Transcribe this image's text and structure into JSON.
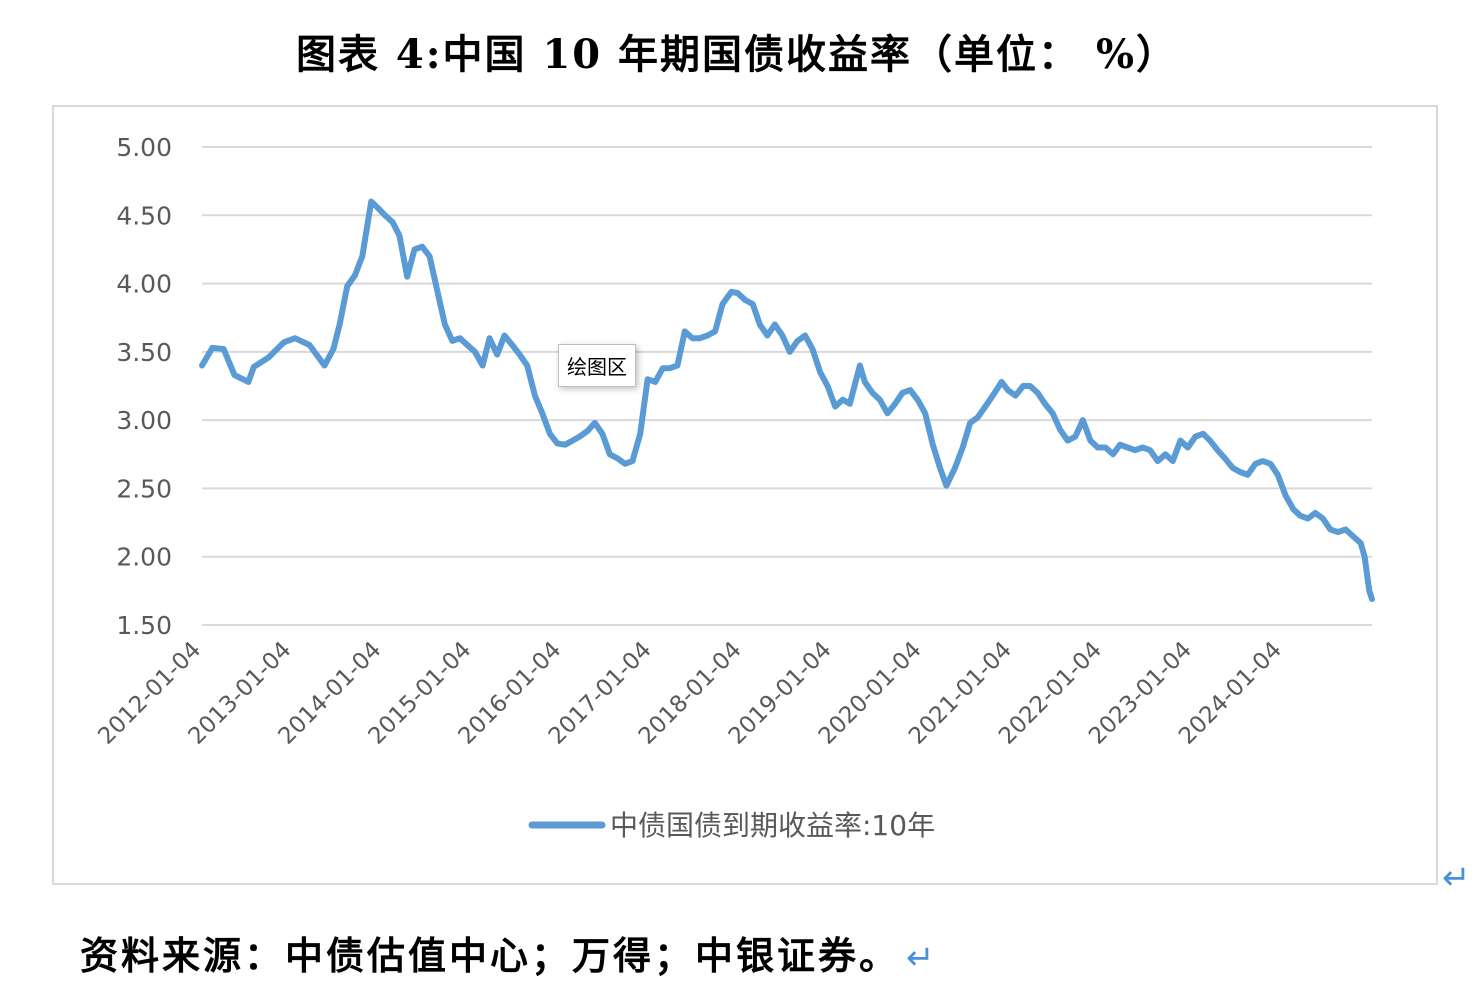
{
  "title": "图表 4:中国 10 年期国债收益率（单位：  %）",
  "source": "资料来源：中债估值中心；万得；中银证券。",
  "tooltip": "绘图区",
  "para_mark": "↵",
  "chart_data": {
    "type": "line",
    "title": "图表 4:中国 10 年期国债收益率（单位：  %）",
    "xlabel": "",
    "ylabel": "",
    "ylim": [
      1.5,
      5.0
    ],
    "yticks": [
      "5.00",
      "4.50",
      "4.00",
      "3.50",
      "3.00",
      "2.50",
      "2.00",
      "1.50"
    ],
    "xticks": [
      "2012-01-04",
      "2013-01-04",
      "2014-01-04",
      "2015-01-04",
      "2016-01-04",
      "2017-01-04",
      "2018-01-04",
      "2019-01-04",
      "2020-01-04",
      "2021-01-04",
      "2022-01-04",
      "2023-01-04",
      "2024-01-04"
    ],
    "xlim": [
      "2012-01-04",
      "2024-12-31"
    ],
    "grid": true,
    "legend": "bottom",
    "color": "#5b9bd5",
    "series": [
      {
        "name": "中债国债到期收益率:10年",
        "x": [
          "2012-01-04",
          "2012-02-15",
          "2012-04-01",
          "2012-05-15",
          "2012-07-10",
          "2012-08-01",
          "2012-10-01",
          "2012-12-01",
          "2013-01-15",
          "2013-03-15",
          "2013-05-15",
          "2013-06-20",
          "2013-07-15",
          "2013-08-15",
          "2013-09-15",
          "2013-10-15",
          "2013-11-20",
          "2013-12-20",
          "2014-01-15",
          "2014-02-15",
          "2014-03-15",
          "2014-04-15",
          "2014-05-15",
          "2014-06-15",
          "2014-07-15",
          "2014-08-15",
          "2014-09-15",
          "2014-10-15",
          "2014-11-15",
          "2014-12-15",
          "2015-01-15",
          "2015-02-15",
          "2015-03-15",
          "2015-04-15",
          "2015-05-15",
          "2015-06-15",
          "2015-07-15",
          "2015-08-15",
          "2015-09-15",
          "2015-10-15",
          "2015-11-15",
          "2015-12-15",
          "2016-01-15",
          "2016-02-15",
          "2016-03-15",
          "2016-04-15",
          "2016-05-15",
          "2016-06-15",
          "2016-07-15",
          "2016-08-15",
          "2016-09-15",
          "2016-10-15",
          "2016-11-15",
          "2016-12-15",
          "2017-01-15",
          "2017-02-15",
          "2017-03-15",
          "2017-04-15",
          "2017-05-15",
          "2017-06-15",
          "2017-07-15",
          "2017-08-15",
          "2017-09-15",
          "2017-10-15",
          "2017-11-20",
          "2017-12-15",
          "2018-01-15",
          "2018-02-15",
          "2018-03-15",
          "2018-04-15",
          "2018-05-15",
          "2018-06-15",
          "2018-07-15",
          "2018-08-15",
          "2018-09-15",
          "2018-10-15",
          "2018-11-15",
          "2018-12-15",
          "2019-01-15",
          "2019-02-15",
          "2019-03-15",
          "2019-04-25",
          "2019-05-15",
          "2019-06-15",
          "2019-07-15",
          "2019-08-15",
          "2019-09-15",
          "2019-10-15",
          "2019-11-15",
          "2019-12-15",
          "2020-01-15",
          "2020-02-15",
          "2020-03-15",
          "2020-04-10",
          "2020-05-15",
          "2020-06-15",
          "2020-07-15",
          "2020-08-15",
          "2020-09-15",
          "2020-10-15",
          "2020-11-20",
          "2020-12-15",
          "2021-01-15",
          "2021-02-15",
          "2021-03-15",
          "2021-04-15",
          "2021-05-15",
          "2021-06-15",
          "2021-07-15",
          "2021-08-15",
          "2021-09-15",
          "2021-10-15",
          "2021-11-15",
          "2021-12-15",
          "2022-01-15",
          "2022-02-15",
          "2022-03-15",
          "2022-04-15",
          "2022-05-15",
          "2022-06-15",
          "2022-07-15",
          "2022-08-15",
          "2022-09-15",
          "2022-10-15",
          "2022-11-15",
          "2022-12-15",
          "2023-01-15",
          "2023-02-15",
          "2023-03-15",
          "2023-04-15",
          "2023-05-15",
          "2023-06-15",
          "2023-07-15",
          "2023-08-15",
          "2023-09-15",
          "2023-10-15",
          "2023-11-15",
          "2023-12-15",
          "2024-01-15",
          "2024-02-15",
          "2024-03-15",
          "2024-04-15",
          "2024-05-15",
          "2024-06-15",
          "2024-07-15",
          "2024-08-15",
          "2024-09-15",
          "2024-10-15",
          "2024-11-15",
          "2024-12-01",
          "2024-12-20",
          "2024-12-31"
        ],
        "values": [
          3.4,
          3.53,
          3.52,
          3.33,
          3.28,
          3.39,
          3.46,
          3.57,
          3.6,
          3.55,
          3.4,
          3.52,
          3.7,
          3.98,
          4.06,
          4.2,
          4.6,
          4.55,
          4.5,
          4.45,
          4.35,
          4.05,
          4.25,
          4.27,
          4.2,
          3.95,
          3.7,
          3.58,
          3.6,
          3.55,
          3.5,
          3.4,
          3.6,
          3.48,
          3.62,
          3.55,
          3.48,
          3.4,
          3.18,
          3.05,
          2.9,
          2.83,
          2.82,
          2.85,
          2.88,
          2.92,
          2.98,
          2.9,
          2.75,
          2.72,
          2.68,
          2.7,
          2.9,
          3.3,
          3.28,
          3.38,
          3.38,
          3.4,
          3.65,
          3.6,
          3.6,
          3.62,
          3.65,
          3.85,
          3.94,
          3.93,
          3.88,
          3.85,
          3.7,
          3.62,
          3.7,
          3.62,
          3.5,
          3.58,
          3.62,
          3.52,
          3.35,
          3.25,
          3.1,
          3.15,
          3.12,
          3.4,
          3.28,
          3.2,
          3.15,
          3.05,
          3.12,
          3.2,
          3.22,
          3.15,
          3.05,
          2.82,
          2.65,
          2.52,
          2.65,
          2.8,
          2.98,
          3.02,
          3.1,
          3.18,
          3.28,
          3.22,
          3.18,
          3.25,
          3.25,
          3.2,
          3.12,
          3.05,
          2.93,
          2.85,
          2.88,
          3.0,
          2.85,
          2.8,
          2.8,
          2.75,
          2.82,
          2.8,
          2.78,
          2.8,
          2.78,
          2.7,
          2.75,
          2.7,
          2.85,
          2.8,
          2.88,
          2.9,
          2.85,
          2.78,
          2.72,
          2.65,
          2.62,
          2.6,
          2.68,
          2.7,
          2.68,
          2.6,
          2.45,
          2.35,
          2.3,
          2.28,
          2.32,
          2.28,
          2.2,
          2.18,
          2.2,
          2.15,
          2.1,
          2.0,
          1.75,
          1.69
        ]
      }
    ]
  }
}
